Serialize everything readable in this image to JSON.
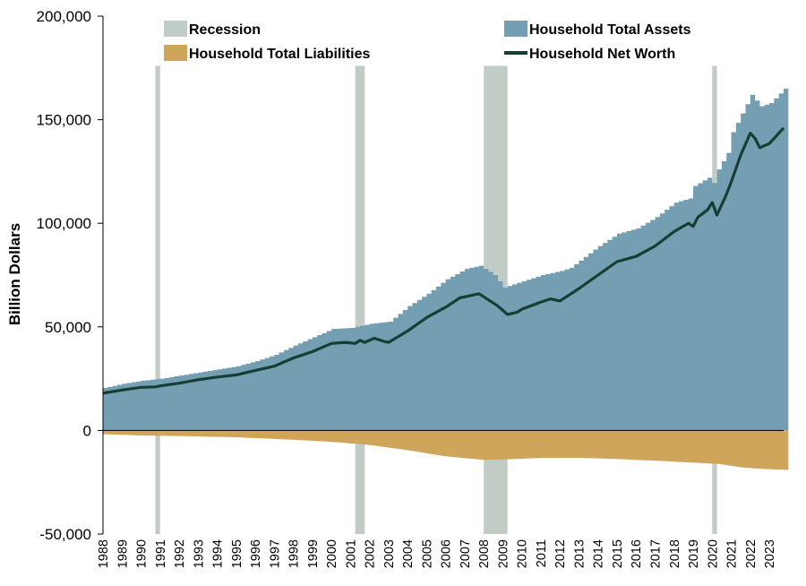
{
  "chart_data": {
    "type": "area",
    "title": "",
    "ylabel": "Billion Dollars",
    "xlabel": "",
    "ylim": [
      -50000,
      200000
    ],
    "y_ticks": [
      -50000,
      0,
      50000,
      100000,
      150000,
      200000
    ],
    "y_tick_labels": [
      "-50,000",
      "0",
      "50,000",
      "100,000",
      "150,000",
      "200,000"
    ],
    "x_range": [
      1988.0,
      2023.75
    ],
    "x_tick_labels": [
      "1988",
      "1989",
      "1990",
      "1991",
      "1992",
      "1993",
      "1994",
      "1995",
      "1996",
      "1997",
      "1998",
      "1999",
      "2000",
      "2001",
      "2002",
      "2003",
      "2004",
      "2005",
      "2006",
      "2007",
      "2008",
      "2009",
      "2010",
      "2011",
      "2012",
      "2013",
      "2014",
      "2015",
      "2016",
      "2017",
      "2018",
      "2019",
      "2020",
      "2021",
      "2022",
      "2023"
    ],
    "legend": {
      "placement": "top",
      "items": [
        {
          "label": "Recession",
          "color": "#c2ccc7",
          "kind": "bar"
        },
        {
          "label": "Household Total Assets",
          "color": "#749fb3",
          "kind": "bar"
        },
        {
          "label": "Household Total Liabilities",
          "color": "#cfa55b",
          "kind": "bar"
        },
        {
          "label": "Household Net Worth",
          "color": "#163f33",
          "kind": "line"
        }
      ]
    },
    "colors": {
      "assets": "#749fb3",
      "liabilities": "#cfa55b",
      "net_worth": "#163f33",
      "recession": "#c2ccc7",
      "axis": "#000000"
    },
    "recessions": [
      {
        "start": 1990.75,
        "end": 1991.0
      },
      {
        "start": 2001.25,
        "end": 2001.75
      },
      {
        "start": 2008.0,
        "end": 2009.25
      },
      {
        "start": 2020.0,
        "end": 2020.25
      }
    ],
    "series": [
      {
        "name": "Household Total Assets",
        "points": [
          [
            1988.0,
            20500
          ],
          [
            1989.0,
            22500
          ],
          [
            1990.0,
            24000
          ],
          [
            1991.0,
            25000
          ],
          [
            1992.0,
            26500
          ],
          [
            1993.0,
            28000
          ],
          [
            1994.0,
            29500
          ],
          [
            1995.0,
            31000
          ],
          [
            1996.0,
            33500
          ],
          [
            1997.0,
            36500
          ],
          [
            1998.0,
            41000
          ],
          [
            1999.0,
            45000
          ],
          [
            2000.0,
            49000
          ],
          [
            2001.0,
            49500
          ],
          [
            2002.0,
            51500
          ],
          [
            2003.0,
            52500
          ],
          [
            2004.0,
            60000
          ],
          [
            2005.0,
            66000
          ],
          [
            2006.0,
            73000
          ],
          [
            2007.0,
            78000
          ],
          [
            2007.75,
            79500
          ],
          [
            2008.5,
            75000
          ],
          [
            2009.0,
            69000
          ],
          [
            2009.5,
            70500
          ],
          [
            2010.0,
            72000
          ],
          [
            2011.0,
            75000
          ],
          [
            2012.0,
            77000
          ],
          [
            2012.5,
            78500
          ],
          [
            2013.0,
            82000
          ],
          [
            2014.0,
            89000
          ],
          [
            2015.0,
            95000
          ],
          [
            2016.0,
            97500
          ],
          [
            2017.0,
            103000
          ],
          [
            2018.0,
            110000
          ],
          [
            2018.75,
            112000
          ],
          [
            2019.0,
            118000
          ],
          [
            2019.75,
            122000
          ],
          [
            2020.0,
            119500
          ],
          [
            2020.25,
            126000
          ],
          [
            2020.75,
            134000
          ],
          [
            2021.0,
            144000
          ],
          [
            2021.5,
            153000
          ],
          [
            2022.0,
            162000
          ],
          [
            2022.5,
            156500
          ],
          [
            2023.0,
            158000
          ],
          [
            2023.75,
            165000
          ]
        ]
      },
      {
        "name": "Household Total Liabilities",
        "points": [
          [
            1988.0,
            -1800
          ],
          [
            1990.0,
            -2400
          ],
          [
            1992.0,
            -2700
          ],
          [
            1995.0,
            -3300
          ],
          [
            1998.0,
            -4500
          ],
          [
            2000.0,
            -5500
          ],
          [
            2002.0,
            -7000
          ],
          [
            2004.0,
            -9500
          ],
          [
            2006.0,
            -12500
          ],
          [
            2008.0,
            -14200
          ],
          [
            2009.0,
            -14000
          ],
          [
            2011.0,
            -13300
          ],
          [
            2013.0,
            -13200
          ],
          [
            2015.0,
            -13800
          ],
          [
            2017.0,
            -14600
          ],
          [
            2019.0,
            -15500
          ],
          [
            2020.5,
            -16300
          ],
          [
            2021.5,
            -17800
          ],
          [
            2022.5,
            -18500
          ],
          [
            2023.75,
            -19000
          ]
        ]
      },
      {
        "name": "Household Net Worth",
        "points": [
          [
            1988.0,
            18000
          ],
          [
            1989.0,
            19500
          ],
          [
            1990.0,
            20800
          ],
          [
            1990.75,
            21000
          ],
          [
            1991.0,
            21500
          ],
          [
            1992.0,
            22800
          ],
          [
            1993.0,
            24500
          ],
          [
            1994.0,
            25800
          ],
          [
            1995.0,
            26800
          ],
          [
            1996.0,
            29000
          ],
          [
            1997.0,
            31000
          ],
          [
            1998.0,
            35000
          ],
          [
            1999.0,
            38000
          ],
          [
            2000.0,
            42000
          ],
          [
            2000.75,
            42500
          ],
          [
            2001.25,
            42000
          ],
          [
            2001.5,
            43500
          ],
          [
            2001.75,
            42500
          ],
          [
            2002.25,
            44500
          ],
          [
            2002.75,
            43000
          ],
          [
            2003.0,
            42500
          ],
          [
            2004.0,
            48000
          ],
          [
            2005.0,
            54500
          ],
          [
            2006.0,
            59500
          ],
          [
            2006.75,
            64000
          ],
          [
            2007.75,
            66000
          ],
          [
            2008.25,
            63000
          ],
          [
            2008.75,
            60000
          ],
          [
            2009.25,
            56000
          ],
          [
            2009.75,
            57000
          ],
          [
            2010.0,
            58500
          ],
          [
            2011.0,
            62000
          ],
          [
            2011.5,
            63500
          ],
          [
            2012.0,
            62500
          ],
          [
            2012.5,
            65500
          ],
          [
            2013.0,
            68500
          ],
          [
            2014.0,
            75000
          ],
          [
            2015.0,
            81500
          ],
          [
            2016.0,
            84000
          ],
          [
            2017.0,
            89000
          ],
          [
            2018.0,
            96000
          ],
          [
            2018.75,
            100000
          ],
          [
            2019.0,
            98500
          ],
          [
            2019.25,
            103000
          ],
          [
            2019.75,
            106500
          ],
          [
            2020.0,
            110000
          ],
          [
            2020.25,
            104000
          ],
          [
            2020.75,
            114000
          ],
          [
            2021.0,
            120000
          ],
          [
            2021.5,
            133000
          ],
          [
            2022.0,
            143500
          ],
          [
            2022.25,
            141000
          ],
          [
            2022.5,
            136500
          ],
          [
            2023.0,
            138500
          ],
          [
            2023.75,
            146000
          ]
        ]
      }
    ]
  }
}
